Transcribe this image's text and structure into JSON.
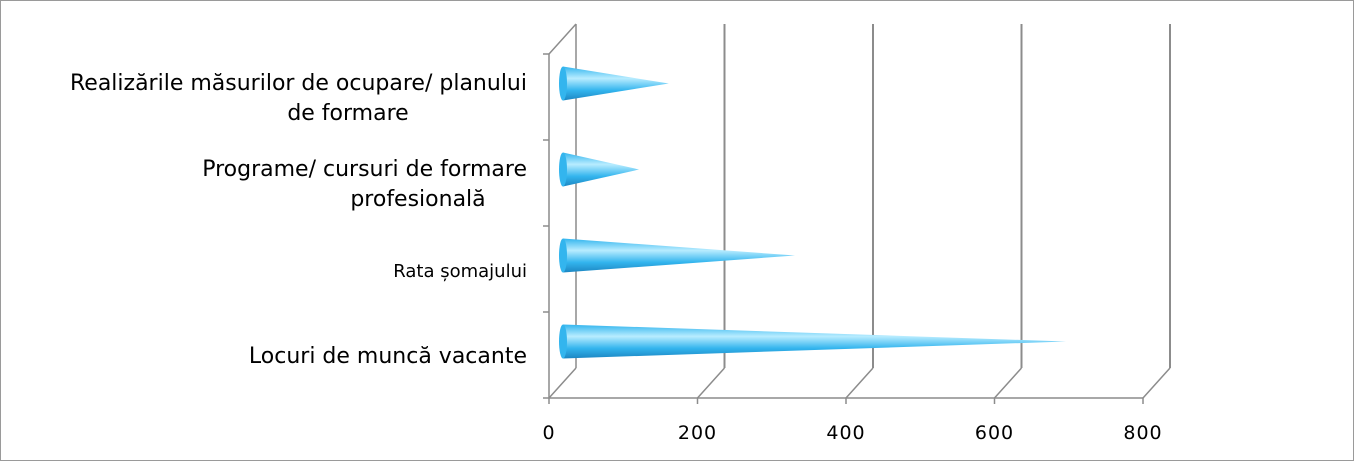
{
  "chart_data": {
    "type": "bar",
    "title": "",
    "xlabel": "",
    "ylabel": "",
    "orientation": "horizontal",
    "style": "3d-cone",
    "categories": [
      "Locuri de muncă vacante",
      "Rata șomajului",
      "Programe/ cursuri de formare profesională",
      "Realizările măsurilor de ocupare/ planului de formare"
    ],
    "category_lines": [
      [
        "Locuri de muncă vacante"
      ],
      [
        "Rata șomajului"
      ],
      [
        "Programe/ cursuri de formare",
        "profesională"
      ],
      [
        "Realizările măsurilor de ocupare/ planului",
        "de formare"
      ]
    ],
    "values": [
      680,
      315,
      105,
      145
    ],
    "xlim": [
      0,
      800
    ],
    "xticks": [
      "0",
      "200",
      "400",
      "600",
      "800"
    ],
    "grid": true,
    "legend": "none",
    "bar_color": "#33B5EE",
    "bar_highlight": "#B8ECFF",
    "bar_shadow": "#1C86C2"
  }
}
